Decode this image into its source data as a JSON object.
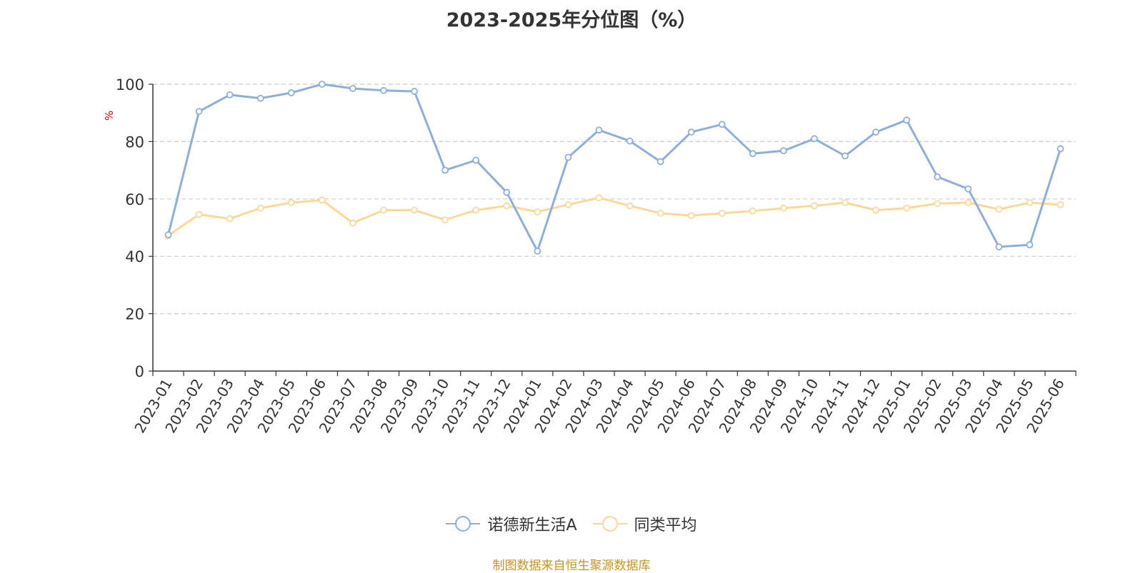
{
  "chart_data": {
    "type": "line",
    "title": "2023-2025年分位图（%）",
    "ylabel": "%",
    "ylim": [
      0,
      100
    ],
    "yticks": [
      "0",
      "20",
      "40",
      "60",
      "80",
      "100"
    ],
    "grid": true,
    "legend_position": "bottom",
    "categories": [
      "2023-01",
      "2023-02",
      "2023-03",
      "2023-04",
      "2023-05",
      "2023-06",
      "2023-07",
      "2023-08",
      "2023-09",
      "2023-10",
      "2023-11",
      "2023-12",
      "2024-01",
      "2024-02",
      "2024-03",
      "2024-04",
      "2024-05",
      "2024-06",
      "2024-07",
      "2024-08",
      "2024-09",
      "2024-10",
      "2024-11",
      "2024-12",
      "2025-01",
      "2025-02",
      "2025-03",
      "2025-04",
      "2025-05",
      "2025-06"
    ],
    "series": [
      {
        "name": "诺德新生活A",
        "color": "#8eaedb",
        "values": [
          47.5,
          90.5,
          96.3,
          95.1,
          97.0,
          100.0,
          98.5,
          97.8,
          97.5,
          70.0,
          73.5,
          62.3,
          41.8,
          74.5,
          84.0,
          80.2,
          73.0,
          83.3,
          86.0,
          75.8,
          76.8,
          81.0,
          75.0,
          83.3,
          87.5,
          67.7,
          63.5,
          43.3,
          44.0,
          77.5
        ]
      },
      {
        "name": "同类平均",
        "color": "#fbd897",
        "values": [
          47.2,
          54.6,
          53.1,
          56.8,
          58.7,
          59.6,
          51.6,
          56.1,
          56.1,
          52.7,
          56.1,
          57.6,
          55.5,
          58.0,
          60.4,
          57.6,
          55.0,
          54.2,
          55.0,
          55.8,
          56.8,
          57.6,
          58.7,
          56.1,
          56.8,
          58.4,
          58.7,
          56.4,
          58.7,
          58.0
        ]
      }
    ]
  },
  "footer": {
    "source": "制图数据来自恒生聚源数据库"
  }
}
